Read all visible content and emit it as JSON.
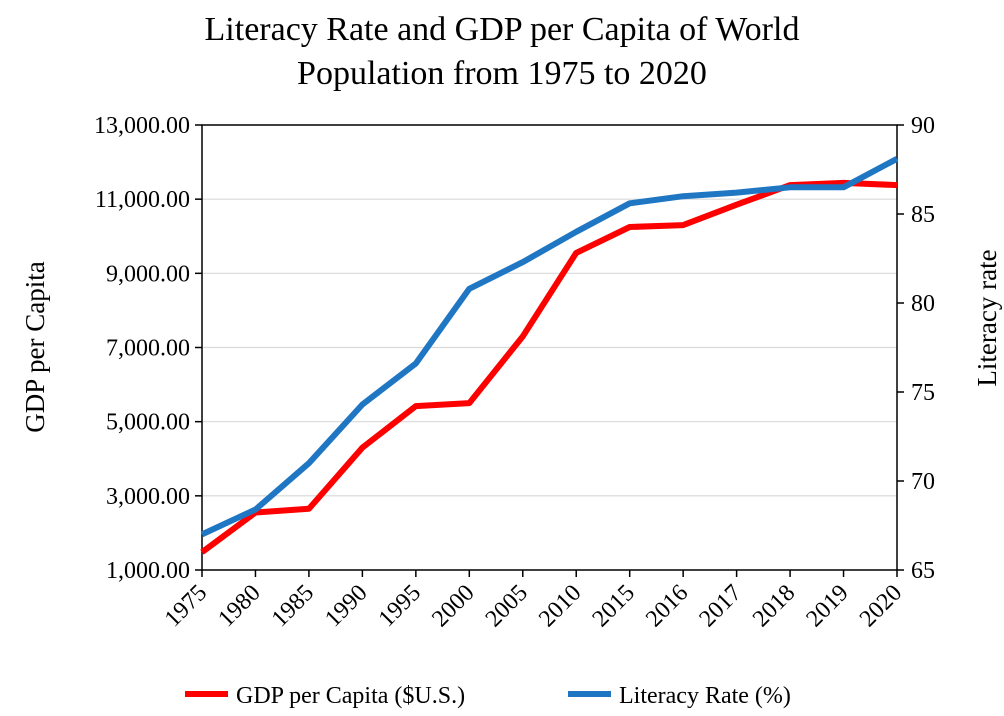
{
  "chart_data": {
    "type": "line",
    "title_lines": [
      "Literacy Rate and GDP per Capita of World",
      "Population from 1975 to 2020"
    ],
    "categories": [
      "1975",
      "1980",
      "1985",
      "1990",
      "1995",
      "2000",
      "2005",
      "2010",
      "2015",
      "2016",
      "2017",
      "2018",
      "2019",
      "2020"
    ],
    "ylabel_left": "GDP per Capita",
    "ylabel_right": "Literacy rate",
    "y_left": {
      "min": 1000,
      "max": 13000,
      "ticks": [
        1000,
        3000,
        5000,
        7000,
        9000,
        11000,
        13000
      ],
      "tick_labels": [
        "1,000.00",
        "3,000.00",
        "5,000.00",
        "7,000.00",
        "9,000.00",
        "11,000.00",
        "13,000.00"
      ]
    },
    "y_right": {
      "min": 65,
      "max": 90,
      "ticks": [
        65,
        70,
        75,
        80,
        85,
        90
      ],
      "tick_labels": [
        "65",
        "70",
        "75",
        "80",
        "85",
        "90"
      ]
    },
    "grid": "horizontal",
    "legend_position": "bottom",
    "series": [
      {
        "name": "GDP per Capita ($U.S.)",
        "axis": "left",
        "color": "#ff0000",
        "values": [
          1480,
          2550,
          2650,
          4300,
          5420,
          5500,
          7300,
          9550,
          10250,
          10300,
          10850,
          11380,
          11440,
          11380
        ]
      },
      {
        "name": "Literacy Rate (%)",
        "axis": "right",
        "color": "#1f77c4",
        "values": [
          67.0,
          68.4,
          71.0,
          74.3,
          76.6,
          80.8,
          82.3,
          84.0,
          85.6,
          86.0,
          86.2,
          86.5,
          86.5,
          88.1
        ]
      }
    ]
  }
}
